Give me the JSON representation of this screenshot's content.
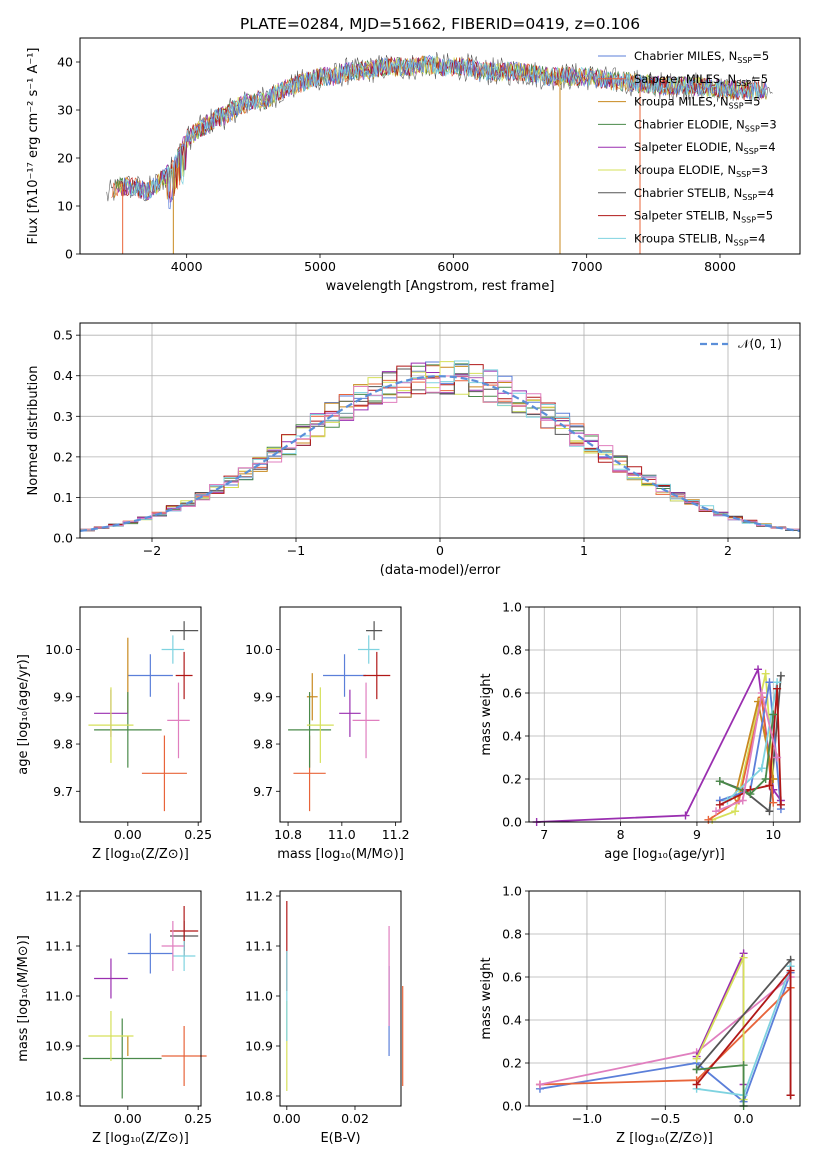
{
  "title": "PLATE=0284, MJD=51662, FIBERID=0419, z=0.106",
  "colors": {
    "chabrier_miles": "#5b7fd9",
    "salpeter_miles": "#e8643a",
    "kroupa_miles": "#c8891f",
    "chabrier_elodie": "#4a8a4a",
    "salpeter_elodie": "#9a2fb0",
    "kroupa_elodie": "#d6e05a",
    "chabrier_stelib": "#555555",
    "salpeter_stelib": "#b01818",
    "kroupa_stelib": "#7fd3e0",
    "gauss": "#5b8fd9",
    "grid": "#b0b0b0"
  },
  "chart_data": [
    {
      "id": "spectrum",
      "type": "line",
      "xlabel": "wavelength [Angstrom, rest frame]",
      "ylabel": "Flux [fλ10⁻¹⁷ erg cm⁻² s⁻¹ A⁻¹]",
      "xlim": [
        3200,
        8600
      ],
      "ylim": [
        0,
        45
      ],
      "xticks": [
        "4000",
        "5000",
        "6000",
        "7000",
        "8000"
      ],
      "yticks": [
        "0",
        "10",
        "20",
        "30",
        "40"
      ],
      "legend_position": "top-right",
      "legend": [
        {
          "label": "Chabrier MILES, N",
          "sub": "SSP",
          "suffix": "=5",
          "color_key": "chabrier_miles"
        },
        {
          "label": "Salpeter MILES, N",
          "sub": "SSP",
          "suffix": "=5",
          "color_key": "salpeter_miles"
        },
        {
          "label": "Kroupa MILES, N",
          "sub": "SSP",
          "suffix": "=5",
          "color_key": "kroupa_miles"
        },
        {
          "label": "Chabrier ELODIE, N",
          "sub": "SSP",
          "suffix": "=3",
          "color_key": "chabrier_elodie"
        },
        {
          "label": "Salpeter ELODIE, N",
          "sub": "SSP",
          "suffix": "=4",
          "color_key": "salpeter_elodie"
        },
        {
          "label": "Kroupa ELODIE, N",
          "sub": "SSP",
          "suffix": "=3",
          "color_key": "kroupa_elodie"
        },
        {
          "label": "Chabrier STELIB, N",
          "sub": "SSP",
          "suffix": "=4",
          "color_key": "chabrier_stelib"
        },
        {
          "label": "Salpeter STELIB, N",
          "sub": "SSP",
          "suffix": "=5",
          "color_key": "salpeter_stelib"
        },
        {
          "label": "Kroupa STELIB, N",
          "sub": "SSP",
          "suffix": "=4",
          "color_key": "kroupa_stelib"
        }
      ],
      "continuum": [
        [
          3400,
          12
        ],
        [
          3500,
          14
        ],
        [
          3600,
          14
        ],
        [
          3700,
          13
        ],
        [
          3800,
          15
        ],
        [
          3900,
          18
        ],
        [
          4000,
          24
        ],
        [
          4100,
          26
        ],
        [
          4200,
          28
        ],
        [
          4300,
          29
        ],
        [
          4400,
          31
        ],
        [
          4500,
          32
        ],
        [
          4600,
          32
        ],
        [
          4700,
          34
        ],
        [
          4800,
          35
        ],
        [
          4900,
          36
        ],
        [
          5000,
          37
        ],
        [
          5100,
          37
        ],
        [
          5200,
          38
        ],
        [
          5300,
          38
        ],
        [
          5400,
          38.5
        ],
        [
          5500,
          39
        ],
        [
          5600,
          39
        ],
        [
          5700,
          39
        ],
        [
          5800,
          39.5
        ],
        [
          5900,
          39
        ],
        [
          6000,
          39
        ],
        [
          6100,
          39
        ],
        [
          6200,
          38
        ],
        [
          6300,
          38
        ],
        [
          6400,
          38
        ],
        [
          6500,
          38
        ],
        [
          6600,
          37.5
        ],
        [
          6700,
          37
        ],
        [
          6800,
          37
        ],
        [
          6900,
          37
        ],
        [
          7000,
          37
        ],
        [
          7100,
          36.5
        ],
        [
          7200,
          36
        ],
        [
          7300,
          36
        ],
        [
          7400,
          35.5
        ],
        [
          7600,
          35
        ],
        [
          7800,
          35
        ],
        [
          8000,
          34.5
        ],
        [
          8200,
          34
        ],
        [
          8400,
          34
        ]
      ]
    },
    {
      "id": "residuals",
      "type": "bar",
      "xlabel": "(data-model)/error",
      "ylabel": "Normed distribution",
      "xlim": [
        -2.5,
        2.5
      ],
      "ylim": [
        0,
        0.53
      ],
      "xticks": [
        "−2",
        "−1",
        "0",
        "1",
        "2"
      ],
      "yticks": [
        "0.0",
        "0.1",
        "0.2",
        "0.3",
        "0.4",
        "0.5"
      ],
      "legend_position": "top-right",
      "gauss_label": "𝒩(0, 1)",
      "bin_width": 0.1
    },
    {
      "id": "age_vs_Z",
      "type": "scatter",
      "xlabel": "Z [log₁₀(Z/Z⊙)]",
      "ylabel": "age [log₁₀(age/yr)]",
      "xlim": [
        -0.17,
        0.26
      ],
      "ylim": [
        9.635,
        10.09
      ],
      "xticks": [
        "0.00",
        "0.25"
      ],
      "yticks": [
        "9.7",
        "9.8",
        "9.9",
        "10.0"
      ],
      "points": [
        {
          "c": "chabrier_miles",
          "x": 0.08,
          "y": 9.945,
          "xe": 0.08,
          "ye": 0.045
        },
        {
          "c": "salpeter_miles",
          "x": 0.13,
          "y": 9.738,
          "xe": 0.08,
          "ye": 0.08
        },
        {
          "c": "kroupa_miles",
          "x": 0.0,
          "y": 9.945,
          "xe": 0.0,
          "ye": 0.08
        },
        {
          "c": "chabrier_elodie",
          "x": 0.0,
          "y": 9.83,
          "xe": 0.12,
          "ye": 0.08
        },
        {
          "c": "salpeter_elodie",
          "x": -0.06,
          "y": 9.865,
          "xe": 0.06,
          "ye": 0.05
        },
        {
          "c": "kroupa_elodie",
          "x": -0.06,
          "y": 9.84,
          "xe": 0.08,
          "ye": 0.08
        },
        {
          "c": "chabrier_stelib",
          "x": 0.2,
          "y": 10.04,
          "xe": 0.05,
          "ye": 0.02
        },
        {
          "c": "salpeter_stelib",
          "x": 0.2,
          "y": 9.945,
          "xe": 0.03,
          "ye": 0.05
        },
        {
          "c": "kroupa_stelib",
          "x": 0.16,
          "y": 10.0,
          "xe": 0.04,
          "ye": 0.03
        },
        {
          "c": "pink",
          "x": 0.18,
          "y": 9.85,
          "xe": 0.04,
          "ye": 0.08
        }
      ]
    },
    {
      "id": "age_vs_mass",
      "type": "scatter",
      "xlabel": "mass [log₁₀(M/M⊙)]",
      "ylabel": "",
      "xlim": [
        10.77,
        11.22
      ],
      "ylim": [
        9.635,
        10.09
      ],
      "xticks": [
        "10.8",
        "11.0",
        "11.2"
      ],
      "yticks": [
        "9.7",
        "9.8",
        "9.9",
        "10.0"
      ],
      "points": [
        {
          "c": "chabrier_miles",
          "x": 11.01,
          "y": 9.945,
          "xe": 0.08,
          "ye": 0.045
        },
        {
          "c": "salpeter_miles",
          "x": 10.88,
          "y": 9.738,
          "xe": 0.06,
          "ye": 0.08
        },
        {
          "c": "kroupa_miles",
          "x": 10.89,
          "y": 9.9,
          "xe": 0.02,
          "ye": 0.05
        },
        {
          "c": "chabrier_elodie",
          "x": 10.88,
          "y": 9.83,
          "xe": 0.08,
          "ye": 0.08
        },
        {
          "c": "salpeter_elodie",
          "x": 11.03,
          "y": 9.865,
          "xe": 0.04,
          "ye": 0.05
        },
        {
          "c": "kroupa_elodie",
          "x": 10.92,
          "y": 9.84,
          "xe": 0.05,
          "ye": 0.08
        },
        {
          "c": "chabrier_stelib",
          "x": 11.12,
          "y": 10.04,
          "xe": 0.03,
          "ye": 0.02
        },
        {
          "c": "salpeter_stelib",
          "x": 11.13,
          "y": 9.945,
          "xe": 0.05,
          "ye": 0.05
        },
        {
          "c": "kroupa_stelib",
          "x": 11.1,
          "y": 10.0,
          "xe": 0.04,
          "ye": 0.03
        },
        {
          "c": "pink",
          "x": 11.09,
          "y": 9.85,
          "xe": 0.05,
          "ye": 0.08
        }
      ]
    },
    {
      "id": "mass_vs_Z",
      "type": "scatter",
      "xlabel": "Z [log₁₀(Z/Z⊙)]",
      "ylabel": "mass [log₁₀(M/M⊙)]",
      "xlim": [
        -0.17,
        0.26
      ],
      "ylim": [
        10.78,
        11.21
      ],
      "xticks": [
        "0.00",
        "0.25"
      ],
      "yticks": [
        "10.8",
        "10.9",
        "11.0",
        "11.1",
        "11.2"
      ],
      "points": [
        {
          "c": "chabrier_miles",
          "x": 0.08,
          "y": 11.085,
          "xe": 0.08,
          "ye": 0.04
        },
        {
          "c": "salpeter_miles",
          "x": 0.2,
          "y": 10.88,
          "xe": 0.08,
          "ye": 0.06
        },
        {
          "c": "kroupa_miles",
          "x": 0.0,
          "y": 10.9,
          "xe": 0.0,
          "ye": 0.02
        },
        {
          "c": "chabrier_elodie",
          "x": -0.02,
          "y": 10.875,
          "xe": 0.14,
          "ye": 0.08
        },
        {
          "c": "salpeter_elodie",
          "x": -0.06,
          "y": 11.035,
          "xe": 0.06,
          "ye": 0.04
        },
        {
          "c": "kroupa_elodie",
          "x": -0.06,
          "y": 10.92,
          "xe": 0.08,
          "ye": 0.05
        },
        {
          "c": "chabrier_stelib",
          "x": 0.2,
          "y": 11.12,
          "xe": 0.05,
          "ye": 0.03
        },
        {
          "c": "salpeter_stelib",
          "x": 0.2,
          "y": 11.13,
          "xe": 0.05,
          "ye": 0.05
        },
        {
          "c": "kroupa_stelib",
          "x": 0.2,
          "y": 11.08,
          "xe": 0.04,
          "ye": 0.03
        },
        {
          "c": "pink",
          "x": 0.16,
          "y": 11.1,
          "xe": 0.04,
          "ye": 0.05
        }
      ]
    },
    {
      "id": "mass_vs_ebv",
      "type": "scatter",
      "xlabel": "E(B-V)",
      "ylabel": "",
      "xlim": [
        -0.002,
        0.0335
      ],
      "ylim": [
        10.78,
        11.21
      ],
      "xticks": [
        "0.00",
        "0.02"
      ],
      "yticks": [
        "10.8",
        "10.9",
        "11.0",
        "11.1",
        "11.2"
      ],
      "points": [
        {
          "c": "chabrier_miles",
          "x": 0.03,
          "y": 10.97,
          "xe": 0,
          "ye": 0.09
        },
        {
          "c": "salpeter_miles",
          "x": 0.034,
          "y": 10.92,
          "xe": 0,
          "ye": 0.1
        },
        {
          "c": "salpeter_stelib",
          "x": 0.0,
          "y": 11.1,
          "xe": 0,
          "ye": 0.09
        },
        {
          "c": "kroupa_elodie",
          "x": 0.0,
          "y": 10.9,
          "xe": 0,
          "ye": 0.09
        },
        {
          "c": "kroupa_stelib",
          "x": 0.0,
          "y": 11.0,
          "xe": 0,
          "ye": 0.09
        },
        {
          "c": "pink",
          "x": 0.03,
          "y": 11.04,
          "xe": 0,
          "ye": 0.1
        }
      ]
    },
    {
      "id": "weight_vs_age",
      "type": "line",
      "xlabel": "age [log₁₀(age/yr)]",
      "ylabel": "mass weight",
      "xlim": [
        6.8,
        10.35
      ],
      "ylim": [
        0,
        1
      ],
      "xticks": [
        "7",
        "8",
        "9",
        "10"
      ],
      "yticks": [
        "0.0",
        "0.2",
        "0.4",
        "0.6",
        "0.8",
        "1.0"
      ],
      "series": [
        {
          "c": "salpeter_elodie",
          "pts": [
            [
              6.9,
              0.0
            ],
            [
              8.85,
              0.03
            ],
            [
              9.8,
              0.71
            ],
            [
              10.0,
              0.15
            ],
            [
              10.1,
              0.1
            ]
          ]
        },
        {
          "c": "chabrier_stelib",
          "pts": [
            [
              9.3,
              0.19
            ],
            [
              9.6,
              0.15
            ],
            [
              9.95,
              0.05
            ],
            [
              10.1,
              0.68
            ]
          ]
        },
        {
          "c": "kroupa_elodie",
          "pts": [
            [
              9.2,
              0.01
            ],
            [
              9.5,
              0.05
            ],
            [
              9.9,
              0.69
            ],
            [
              10.0,
              0.2
            ]
          ]
        },
        {
          "c": "salpeter_miles",
          "pts": [
            [
              9.15,
              0.01
            ],
            [
              9.55,
              0.1
            ],
            [
              9.85,
              0.58
            ],
            [
              10.0,
              0.09
            ]
          ]
        },
        {
          "c": "kroupa_miles",
          "pts": [
            [
              9.5,
              0.12
            ],
            [
              9.8,
              0.56
            ],
            [
              10.0,
              0.2
            ]
          ]
        },
        {
          "c": "chabrier_miles",
          "pts": [
            [
              9.3,
              0.1
            ],
            [
              9.7,
              0.15
            ],
            [
              9.95,
              0.65
            ],
            [
              10.1,
              0.06
            ]
          ]
        },
        {
          "c": "kroupa_stelib",
          "pts": [
            [
              9.4,
              0.1
            ],
            [
              9.85,
              0.25
            ],
            [
              10.05,
              0.65
            ]
          ]
        },
        {
          "c": "salpeter_stelib",
          "pts": [
            [
              9.3,
              0.08
            ],
            [
              9.7,
              0.15
            ],
            [
              9.95,
              0.17
            ],
            [
              10.05,
              0.62
            ],
            [
              10.1,
              0.08
            ]
          ]
        },
        {
          "c": "chabrier_elodie",
          "pts": [
            [
              9.3,
              0.19
            ],
            [
              9.7,
              0.13
            ],
            [
              9.9,
              0.2
            ],
            [
              10.0,
              0.5
            ]
          ]
        },
        {
          "c": "pink",
          "pts": [
            [
              9.25,
              0.05
            ],
            [
              9.6,
              0.1
            ],
            [
              9.85,
              0.6
            ],
            [
              10.05,
              0.3
            ]
          ]
        }
      ]
    },
    {
      "id": "weight_vs_Z",
      "type": "line",
      "xlabel": "Z [log₁₀(Z/Z⊙)]",
      "ylabel": "mass weight",
      "xlim": [
        -1.37,
        0.36
      ],
      "ylim": [
        0,
        1
      ],
      "xticks": [
        "−1.0",
        "−0.5",
        "0.0"
      ],
      "yticks": [
        "0.0",
        "0.2",
        "0.4",
        "0.6",
        "0.8",
        "1.0"
      ],
      "series": [
        {
          "c": "chabrier_miles",
          "pts": [
            [
              -1.3,
              0.08
            ],
            [
              -0.3,
              0.2
            ],
            [
              0.0,
              0.02
            ],
            [
              0.3,
              0.62
            ]
          ]
        },
        {
          "c": "salpeter_miles",
          "pts": [
            [
              -1.3,
              0.1
            ],
            [
              -0.3,
              0.12
            ],
            [
              0.3,
              0.55
            ]
          ]
        },
        {
          "c": "pink",
          "pts": [
            [
              -1.3,
              0.1
            ],
            [
              -0.3,
              0.25
            ],
            [
              0.3,
              0.6
            ]
          ]
        },
        {
          "c": "salpeter_elodie",
          "pts": [
            [
              -0.3,
              0.23
            ],
            [
              0.0,
              0.71
            ],
            [
              0.0,
              0.1
            ]
          ]
        },
        {
          "c": "kroupa_elodie",
          "pts": [
            [
              -0.3,
              0.22
            ],
            [
              0.0,
              0.69
            ],
            [
              0.0,
              0.03
            ]
          ]
        },
        {
          "c": "chabrier_stelib",
          "pts": [
            [
              -0.3,
              0.17
            ],
            [
              0.3,
              0.68
            ],
            [
              0.3,
              0.05
            ]
          ]
        },
        {
          "c": "kroupa_stelib",
          "pts": [
            [
              -0.3,
              0.08
            ],
            [
              0.0,
              0.05
            ],
            [
              0.3,
              0.65
            ]
          ]
        },
        {
          "c": "salpeter_stelib",
          "pts": [
            [
              -0.3,
              0.1
            ],
            [
              0.3,
              0.63
            ],
            [
              0.3,
              0.05
            ]
          ]
        },
        {
          "c": "chabrier_elodie",
          "pts": [
            [
              -0.3,
              0.17
            ],
            [
              0.0,
              0.19
            ],
            [
              0.0,
              0.0
            ]
          ]
        }
      ]
    }
  ]
}
